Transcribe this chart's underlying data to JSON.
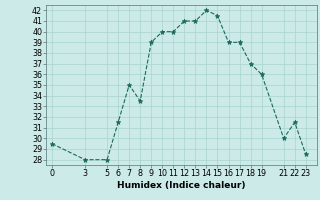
{
  "x": [
    0,
    3,
    5,
    6,
    7,
    8,
    9,
    10,
    11,
    12,
    13,
    14,
    15,
    16,
    17,
    18,
    19,
    21,
    22,
    23
  ],
  "y": [
    29.5,
    28,
    28,
    31.5,
    35,
    33.5,
    39,
    40,
    40,
    41,
    41,
    42,
    41.5,
    39,
    39,
    37,
    36,
    30,
    31.5,
    28.5
  ],
  "xticks": [
    0,
    3,
    5,
    6,
    7,
    8,
    9,
    10,
    11,
    12,
    13,
    14,
    15,
    16,
    17,
    18,
    19,
    21,
    22,
    23
  ],
  "yticks": [
    28,
    29,
    30,
    31,
    32,
    33,
    34,
    35,
    36,
    37,
    38,
    39,
    40,
    41,
    42
  ],
  "xlabel": "Humidex (Indice chaleur)",
  "xlim": [
    -0.5,
    24
  ],
  "ylim": [
    27.5,
    42.5
  ],
  "line_color": "#1a6b5a",
  "marker_color": "#1a6b5a",
  "bg_color": "#cceae7",
  "grid_color": "#aad4d0",
  "label_fontsize": 6.5,
  "tick_fontsize": 5.8
}
